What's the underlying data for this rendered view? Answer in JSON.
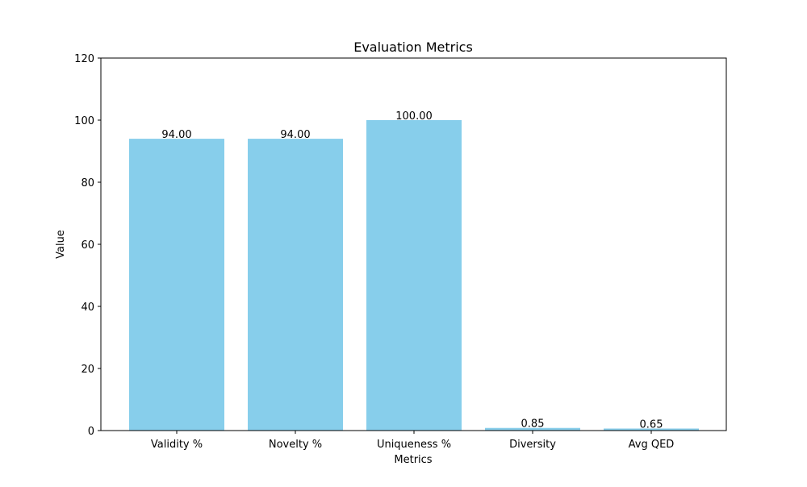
{
  "chart_data": {
    "type": "bar",
    "title": "Evaluation Metrics",
    "xlabel": "Metrics",
    "ylabel": "Value",
    "categories": [
      "Validity %",
      "Novelty %",
      "Uniqueness %",
      "Diversity",
      "Avg QED"
    ],
    "values": [
      94.0,
      94.0,
      100.0,
      0.85,
      0.65
    ],
    "value_labels": [
      "94.00",
      "94.00",
      "100.00",
      "0.85",
      "0.65"
    ],
    "ylim": [
      0,
      120
    ],
    "yticks": [
      0,
      20,
      40,
      60,
      80,
      100,
      120
    ],
    "bar_color": "#87ceeb",
    "grid": false,
    "legend": "none"
  }
}
